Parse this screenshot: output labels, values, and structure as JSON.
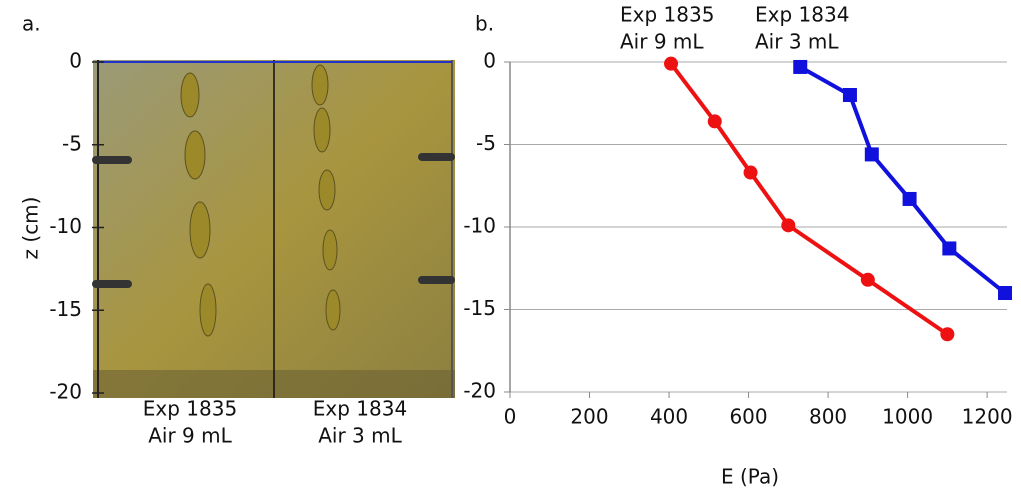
{
  "chart_data": [
    {
      "type": "image",
      "panel_label": "a.",
      "ylabel": "z (cm)",
      "ylim": [
        -20,
        0
      ],
      "yticks": [
        0,
        -5,
        -10,
        -15,
        -20
      ],
      "captions": [
        {
          "lines": [
            "Exp 1835",
            "Air 9 mL"
          ],
          "color": "#ee1111"
        },
        {
          "lines": [
            "Exp 1834",
            "Air 3 mL"
          ],
          "color": "#1111dd"
        }
      ]
    },
    {
      "type": "line",
      "panel_label": "b.",
      "xlabel": "E (Pa)",
      "xlim": [
        0,
        1250
      ],
      "ylim": [
        -20,
        0
      ],
      "xticks": [
        0,
        200,
        400,
        600,
        800,
        1000,
        1200
      ],
      "yticks": [
        0,
        -5,
        -10,
        -15,
        -20
      ],
      "grid": true,
      "series": [
        {
          "name": "Exp 1835",
          "note": "Air 9 mL",
          "color": "#ee1111",
          "marker": "circle",
          "x": [
            405,
            515,
            605,
            700,
            900,
            1100
          ],
          "values": [
            -0.1,
            -3.6,
            -6.7,
            -9.9,
            -13.2,
            -16.5
          ]
        },
        {
          "name": "Exp 1834",
          "note": "Air 3 mL",
          "color": "#1111dd",
          "marker": "square",
          "x": [
            730,
            855,
            910,
            1005,
            1105,
            1245
          ],
          "values": [
            -0.3,
            -2.0,
            -5.6,
            -8.3,
            -11.3,
            -14.0
          ]
        }
      ]
    }
  ]
}
